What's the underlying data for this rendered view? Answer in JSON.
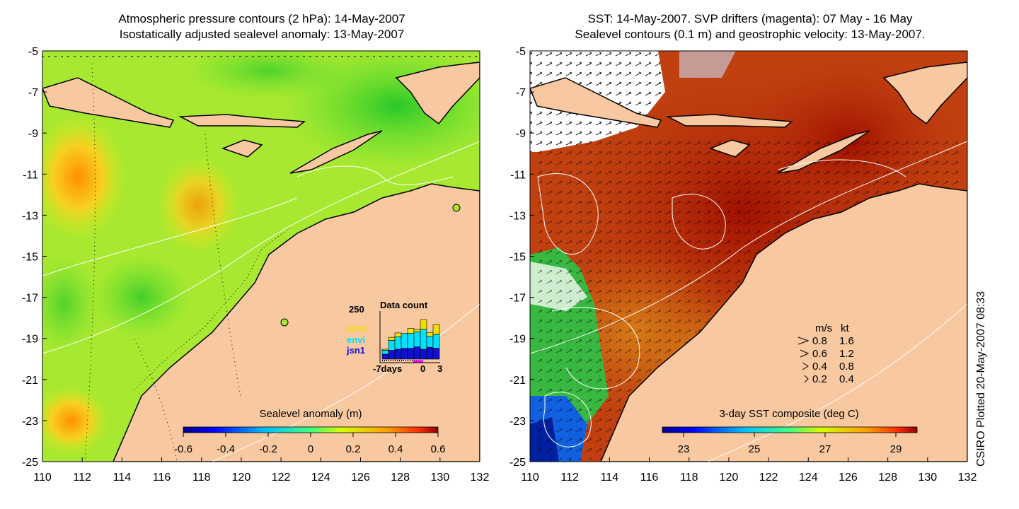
{
  "left_panel": {
    "title_line1": "Atmospheric pressure contours (2 hPa): 14-May-2007",
    "title_line2": "Isostatically adjusted sealevel anomaly: 13-May-2007",
    "colorbar_label": "Sealevel anomaly (m)",
    "colorbar_ticks": [
      "-0.6",
      "-0.4",
      "-0.2",
      "0",
      "0.2",
      "0.4",
      "0.6"
    ],
    "inset": {
      "ymax_label": "250",
      "title": "Data count",
      "sources": [
        {
          "name": "GFO",
          "color": "#f0e000"
        },
        {
          "name": "envi",
          "color": "#00e0ff"
        },
        {
          "name": "jsn1",
          "color": "#1010d0"
        }
      ],
      "x_labels": [
        "-7days",
        "0",
        "3"
      ],
      "bars": [
        {
          "jsn1": 0.1,
          "envi": 0.08,
          "GFO": 0.02
        },
        {
          "jsn1": 0.18,
          "envi": 0.2,
          "GFO": 0.06
        },
        {
          "jsn1": 0.2,
          "envi": 0.25,
          "GFO": 0.08
        },
        {
          "jsn1": 0.22,
          "envi": 0.3,
          "GFO": 0.0
        },
        {
          "jsn1": 0.22,
          "envi": 0.3,
          "GFO": 0.1
        },
        {
          "jsn1": 0.25,
          "envi": 0.3,
          "GFO": 0.05
        },
        {
          "jsn1": 0.2,
          "envi": 0.4,
          "GFO": 0.2
        },
        {
          "jsn1": 0.24,
          "envi": 0.22,
          "GFO": 0.08
        },
        {
          "jsn1": 0.22,
          "envi": 0.28,
          "GFO": 0.2
        }
      ]
    }
  },
  "right_panel": {
    "title_line1": "SST: 14-May-2007. SVP drifters (magenta): 07 May - 16 May",
    "title_line2": "Sealevel contours (0.1 m) and geostrophic velocity: 13-May-2007.",
    "colorbar_label": "3-day SST composite (deg C)",
    "colorbar_ticks": [
      "23",
      "25",
      "27",
      "29"
    ],
    "velocity_legend": {
      "header_ms": "m/s",
      "header_kt": "kt",
      "rows": [
        {
          "ms": "0.8",
          "kt": "1.6"
        },
        {
          "ms": "0.6",
          "kt": "1.2"
        },
        {
          "ms": "0.4",
          "kt": "0.8"
        },
        {
          "ms": "0.2",
          "kt": "0.4"
        }
      ]
    }
  },
  "axes": {
    "lat_ticks": [
      "-5",
      "-7",
      "-9",
      "-11",
      "-13",
      "-15",
      "-17",
      "-19",
      "-21",
      "-23",
      "-25"
    ],
    "lon_ticks": [
      "110",
      "112",
      "114",
      "116",
      "118",
      "120",
      "122",
      "124",
      "126",
      "128",
      "130",
      "132"
    ]
  },
  "credit": "CSIRO Plotted 20-May-2007 08:33",
  "colors": {
    "land": "#f8c8a0",
    "sla_ocean": "#a8e830",
    "sst_ocean": "#c04010",
    "contour": "#ffffff"
  }
}
